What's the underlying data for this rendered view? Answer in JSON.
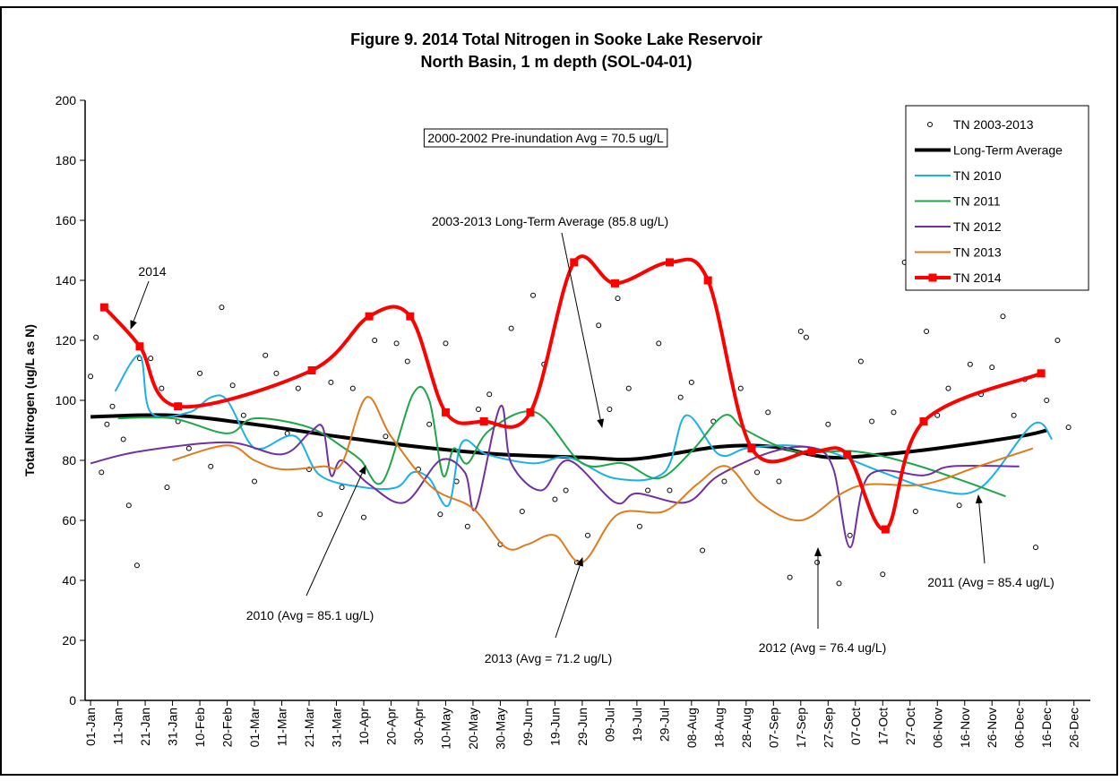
{
  "chart_data": {
    "type": "line",
    "title": "Figure 9. 2014 Total Nitrogen in Sooke Lake Reservoir",
    "subtitle": "North Basin, 1 m depth (SOL-04-01)",
    "y_label": "Total Nitrogen (ug/L as N)",
    "ylim": [
      0,
      200
    ],
    "yticks": [
      0,
      20,
      40,
      60,
      80,
      100,
      120,
      140,
      160,
      180,
      200
    ],
    "xlim": [
      -2,
      366
    ],
    "xticks": [
      {
        "value": 0,
        "label": "01-Jan"
      },
      {
        "value": 10,
        "label": "11-Jan"
      },
      {
        "value": 20,
        "label": "21-Jan"
      },
      {
        "value": 30,
        "label": "31-Jan"
      },
      {
        "value": 40,
        "label": "10-Feb"
      },
      {
        "value": 50,
        "label": "20-Feb"
      },
      {
        "value": 60,
        "label": "01-Mar"
      },
      {
        "value": 70,
        "label": "11-Mar"
      },
      {
        "value": 80,
        "label": "21-Mar"
      },
      {
        "value": 90,
        "label": "31-Mar"
      },
      {
        "value": 100,
        "label": "10-Apr"
      },
      {
        "value": 110,
        "label": "20-Apr"
      },
      {
        "value": 120,
        "label": "30-Apr"
      },
      {
        "value": 130,
        "label": "10-May"
      },
      {
        "value": 140,
        "label": "20-May"
      },
      {
        "value": 150,
        "label": "30-May"
      },
      {
        "value": 160,
        "label": "09-Jun"
      },
      {
        "value": 170,
        "label": "19-Jun"
      },
      {
        "value": 180,
        "label": "29-Jun"
      },
      {
        "value": 190,
        "label": "09-Jul"
      },
      {
        "value": 200,
        "label": "19-Jul"
      },
      {
        "value": 210,
        "label": "29-Jul"
      },
      {
        "value": 220,
        "label": "08-Aug"
      },
      {
        "value": 230,
        "label": "18-Aug"
      },
      {
        "value": 240,
        "label": "28-Aug"
      },
      {
        "value": 250,
        "label": "07-Sep"
      },
      {
        "value": 260,
        "label": "17-Sep"
      },
      {
        "value": 270,
        "label": "27-Sep"
      },
      {
        "value": 280,
        "label": "07-Oct"
      },
      {
        "value": 290,
        "label": "17-Oct"
      },
      {
        "value": 300,
        "label": "27-Oct"
      },
      {
        "value": 310,
        "label": "06-Nov"
      },
      {
        "value": 320,
        "label": "16-Nov"
      },
      {
        "value": 330,
        "label": "26-Nov"
      },
      {
        "value": 340,
        "label": "06-Dec"
      },
      {
        "value": 350,
        "label": "16-Dec"
      },
      {
        "value": 360,
        "label": "26-Dec"
      }
    ],
    "legend": "upper right",
    "series": [
      {
        "name": "TN 2003-2013",
        "kind": "scatter",
        "color": "#000000",
        "x": [
          0,
          2,
          4,
          6,
          8,
          12,
          14,
          17,
          18,
          22,
          26,
          28,
          32,
          36,
          40,
          44,
          48,
          52,
          56,
          60,
          64,
          68,
          72,
          76,
          80,
          84,
          88,
          92,
          96,
          100,
          104,
          108,
          112,
          116,
          120,
          124,
          128,
          130,
          134,
          138,
          142,
          146,
          150,
          154,
          158,
          162,
          166,
          170,
          174,
          178,
          182,
          186,
          190,
          193,
          197,
          201,
          204,
          208,
          212,
          216,
          220,
          224,
          228,
          232,
          238,
          244,
          248,
          252,
          256,
          260,
          262,
          266,
          270,
          274,
          278,
          282,
          286,
          290,
          294,
          298,
          302,
          306,
          310,
          314,
          318,
          322,
          326,
          330,
          334,
          338,
          342,
          346,
          350,
          354,
          358
        ],
        "values": [
          108,
          121,
          76,
          92,
          98,
          87,
          65,
          45,
          114,
          114,
          104,
          71,
          93,
          84,
          109,
          78,
          131,
          105,
          95,
          73,
          115,
          109,
          89,
          104,
          77,
          62,
          106,
          71,
          104,
          61,
          120,
          88,
          119,
          113,
          77,
          92,
          62,
          119,
          73,
          58,
          97,
          102,
          52,
          124,
          63,
          135,
          112,
          67,
          70,
          46,
          55,
          125,
          97,
          134,
          104,
          58,
          70,
          119,
          70,
          101,
          106,
          50,
          93,
          73,
          104,
          76,
          96,
          73,
          41,
          123,
          121,
          46,
          92,
          39,
          55,
          113,
          93,
          42,
          96,
          146,
          63,
          123,
          95,
          104,
          65,
          112,
          102,
          111,
          128,
          95,
          107,
          51,
          100,
          120,
          91
        ]
      },
      {
        "name": "Long-Term Average",
        "kind": "line",
        "color": "#000000",
        "width": 4,
        "x": [
          0,
          30,
          60,
          90,
          120,
          150,
          180,
          200,
          230,
          250,
          270,
          290,
          310,
          340,
          350
        ],
        "values": [
          94.5,
          95,
          92,
          88,
          84.5,
          82,
          81,
          80.5,
          84.5,
          84.5,
          81,
          82,
          84,
          88,
          90
        ]
      },
      {
        "name": "TN 2010",
        "kind": "line",
        "color": "#1ab0e8",
        "width": 2,
        "x": [
          9,
          18,
          22,
          36,
          44,
          50,
          58,
          63,
          75,
          84,
          100,
          112,
          118,
          124,
          131,
          136,
          145,
          162,
          175,
          192,
          210,
          218,
          230,
          240,
          255,
          270,
          290,
          310,
          326,
          345,
          352
        ],
        "values": [
          103,
          115,
          96,
          96,
          101,
          100,
          86,
          84,
          88,
          75,
          71,
          71,
          76,
          74,
          65,
          86,
          82,
          79,
          81,
          74,
          76,
          95,
          82,
          84,
          85,
          83,
          76,
          70,
          71,
          92,
          87
        ]
      },
      {
        "name": "TN 2011",
        "kind": "line",
        "color": "#1fa64a",
        "width": 2,
        "x": [
          10,
          30,
          50,
          60,
          80,
          93,
          99,
          107,
          118,
          124,
          129,
          133,
          138,
          146,
          163,
          180,
          195,
          208,
          220,
          232,
          240,
          258,
          280,
          300,
          320,
          335
        ],
        "values": [
          94,
          94,
          89,
          94,
          91,
          84,
          80,
          73,
          102,
          100,
          75,
          84,
          79,
          90,
          96,
          79,
          79,
          74,
          83,
          95,
          90,
          83,
          83,
          79,
          73,
          68
        ]
      },
      {
        "name": "TN 2012",
        "kind": "line",
        "color": "#7030a0",
        "width": 2,
        "x": [
          0,
          18,
          50,
          70,
          80,
          85,
          88,
          92,
          102,
          115,
          128,
          137,
          141,
          150,
          154,
          165,
          175,
          192,
          200,
          218,
          230,
          250,
          265,
          272,
          278,
          285,
          305,
          315,
          340
        ],
        "values": [
          79,
          83,
          86,
          82,
          89,
          91,
          75,
          80,
          72,
          66,
          80,
          76,
          64,
          98,
          79,
          70,
          80,
          66,
          69,
          66,
          75,
          83,
          84,
          77,
          51,
          75,
          75,
          78,
          78
        ]
      },
      {
        "name": "TN 2013",
        "kind": "line",
        "color": "#e07b1a",
        "width": 2,
        "x": [
          30,
          50,
          60,
          70,
          85,
          92,
          101,
          110,
          125,
          140,
          152,
          160,
          170,
          180,
          193,
          210,
          222,
          233,
          245,
          260,
          275,
          285,
          305,
          325,
          345
        ],
        "values": [
          80,
          85,
          80,
          77,
          78,
          79,
          101,
          88,
          71,
          64,
          51,
          52,
          55,
          46,
          62,
          63,
          72,
          78,
          66,
          60,
          69,
          72,
          72,
          78,
          84
        ]
      },
      {
        "name": "TN 2014",
        "kind": "line",
        "markers": true,
        "color": "#ff0000",
        "width": 4,
        "x": [
          5,
          18,
          32,
          81,
          102,
          117,
          130,
          144,
          161,
          177,
          192,
          212,
          226,
          242,
          264,
          277,
          291,
          305,
          348
        ],
        "values": [
          131,
          118,
          98,
          110,
          128,
          128,
          96,
          93,
          96,
          146,
          139,
          146,
          140,
          84,
          83,
          82,
          57,
          93,
          109
        ]
      }
    ],
    "annotations": [
      {
        "text": "2000-2002 Pre-inundation Avg = 70.5 ug/L"
      },
      {
        "text": "2003-2013 Long-Term Average (85.8 ug/L)"
      },
      {
        "text": "2014"
      },
      {
        "text": "2010 (Avg = 85.1 ug/L)"
      },
      {
        "text": "2013 (Avg = 71.2 ug/L)"
      },
      {
        "text": "2012 (Avg = 76.4 ug/L)"
      },
      {
        "text": "2011 (Avg = 85.4 ug/L)"
      }
    ]
  }
}
